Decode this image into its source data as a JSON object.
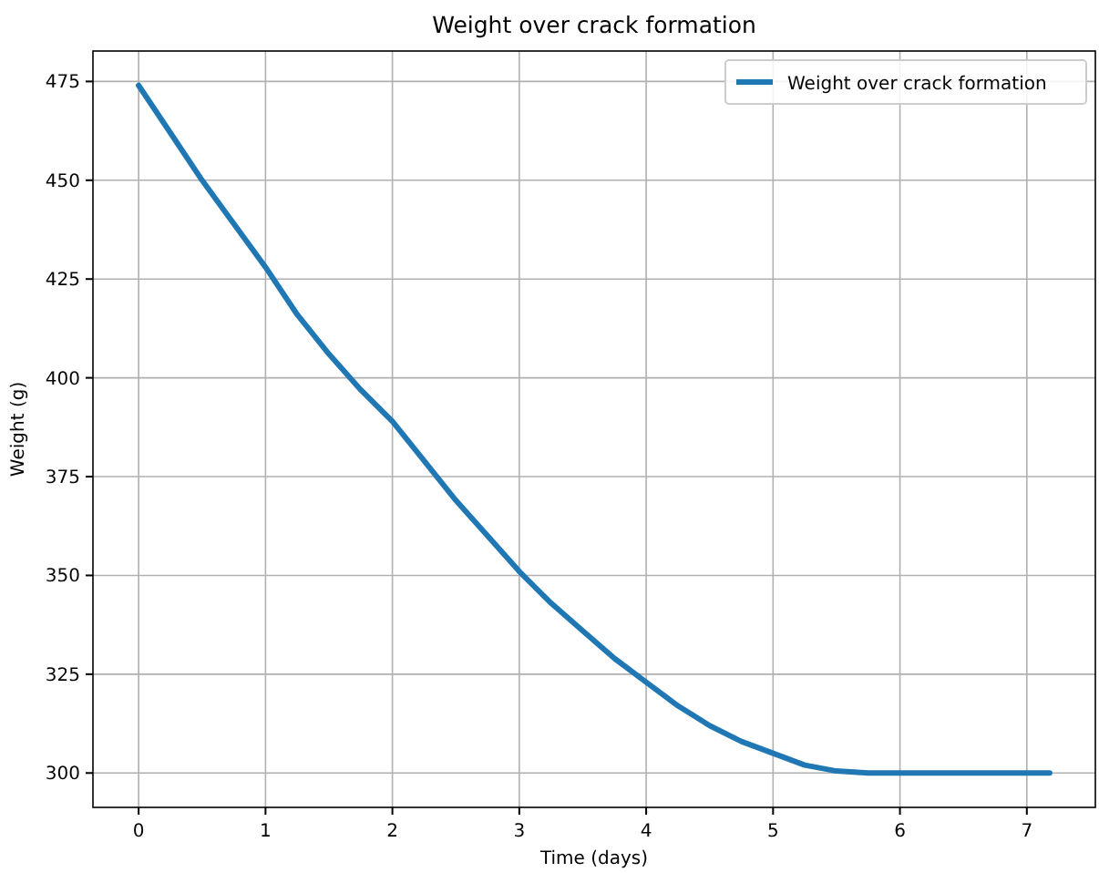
{
  "chart_data": {
    "type": "line",
    "title": "Weight over crack formation",
    "xlabel": "Time (days)",
    "ylabel": "Weight (g)",
    "x": [
      0,
      0.25,
      0.5,
      0.75,
      1,
      1.25,
      1.5,
      1.75,
      2,
      2.25,
      2.5,
      2.75,
      3,
      3.25,
      3.5,
      3.75,
      4,
      4.25,
      4.5,
      4.75,
      5,
      5.25,
      5.5,
      5.75,
      6,
      6.5,
      7,
      7.18
    ],
    "series": [
      {
        "name": "Weight over crack formation",
        "color": "#1f77b4",
        "values": [
          474,
          462,
          450,
          439,
          428,
          416,
          406,
          397,
          389,
          379,
          369,
          360,
          351,
          343,
          336,
          329,
          323,
          317,
          312,
          308,
          305,
          302,
          300.5,
          300,
          300,
          300,
          300,
          300
        ]
      }
    ],
    "xlim": [
      -0.36,
      7.54
    ],
    "xticks": [
      0,
      1,
      2,
      3,
      4,
      5,
      6,
      7
    ],
    "ylim": [
      291.3,
      482.7
    ],
    "yticks": [
      300,
      325,
      350,
      375,
      400,
      425,
      450,
      475
    ],
    "grid": true,
    "legend": "top right",
    "marker": "none",
    "line_style": "solid"
  }
}
